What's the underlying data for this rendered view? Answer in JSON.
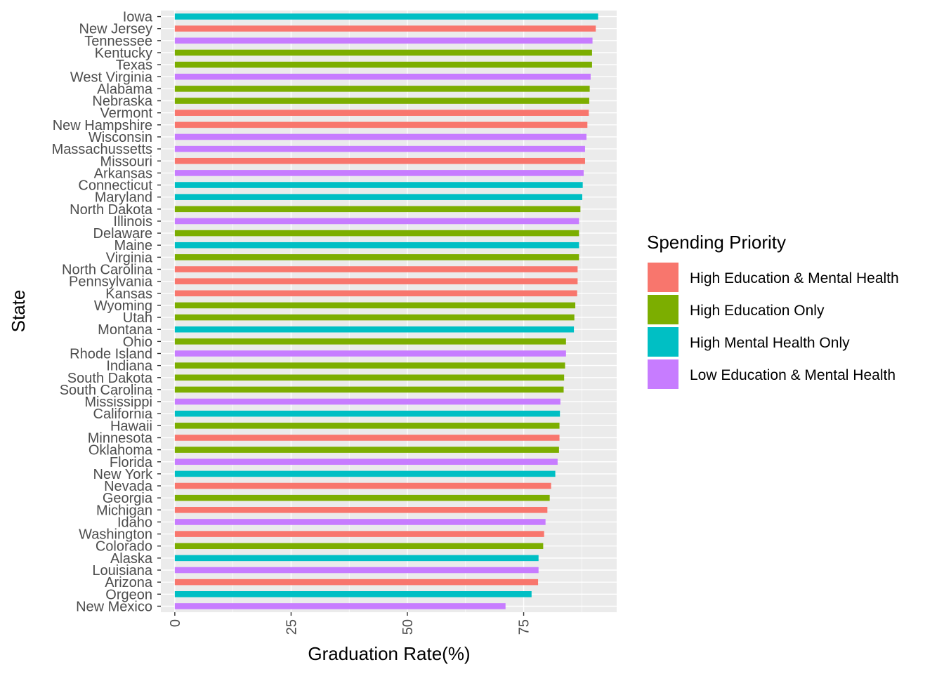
{
  "chart_data": {
    "type": "bar",
    "orientation": "horizontal",
    "xlabel": "Graduation Rate(%)",
    "ylabel": "State",
    "xlim": [
      -3,
      95
    ],
    "x_ticks": [
      0,
      25,
      50,
      75
    ],
    "x_tick_labels": [
      "0",
      "25",
      "50",
      "75"
    ],
    "grid": true,
    "legend": {
      "title": "Spending Priority",
      "position": "right",
      "entries": [
        {
          "label": "High Education & Mental Health",
          "color": "#F8766D"
        },
        {
          "label": "High Education Only",
          "color": "#7CAE00"
        },
        {
          "label": "High Mental Health Only",
          "color": "#00BFC4"
        },
        {
          "label": "Low Education & Mental Health",
          "color": "#C77CFF"
        }
      ]
    },
    "categories": [
      "New Mexico",
      "Orgeon",
      "Arizona",
      "Louisiana",
      "Alaska",
      "Colorado",
      "Washington",
      "Idaho",
      "Michigan",
      "Georgia",
      "Nevada",
      "New York",
      "Florida",
      "Oklahoma",
      "Minnesota",
      "Hawaii",
      "California",
      "Mississippi",
      "South Carolina",
      "South Dakota",
      "Indiana",
      "Rhode Island",
      "Ohio",
      "Montana",
      "Utah",
      "Wyoming",
      "Kansas",
      "Pennsylvania",
      "North Carolina",
      "Virginia",
      "Maine",
      "Delaware",
      "Illinois",
      "North Dakota",
      "Maryland",
      "Connecticut",
      "Arkansas",
      "Missouri",
      "Massachussetts",
      "Wisconsin",
      "New Hampshire",
      "Vermont",
      "Nebraska",
      "Alabama",
      "West Virginia",
      "Texas",
      "Kentucky",
      "Tennessee",
      "New Jersey",
      "Iowa"
    ],
    "values": [
      71.1,
      76.7,
      78.1,
      78.2,
      78.2,
      79.2,
      79.4,
      79.7,
      80.1,
      80.6,
      80.9,
      81.8,
      82.3,
      82.6,
      82.7,
      82.7,
      82.8,
      82.9,
      83.6,
      83.7,
      83.9,
      84.1,
      84.1,
      85.8,
      85.9,
      86.1,
      86.5,
      86.6,
      86.6,
      86.9,
      86.9,
      86.9,
      86.9,
      87.2,
      87.6,
      87.7,
      87.9,
      88.2,
      88.2,
      88.5,
      88.7,
      89.0,
      89.1,
      89.2,
      89.4,
      89.7,
      89.7,
      89.8,
      90.5,
      91.0
    ],
    "groups": [
      "Low Education & Mental Health",
      "High Mental Health Only",
      "High Education & Mental Health",
      "Low Education & Mental Health",
      "High Mental Health Only",
      "High Education Only",
      "High Education & Mental Health",
      "Low Education & Mental Health",
      "High Education & Mental Health",
      "High Education Only",
      "High Education & Mental Health",
      "High Mental Health Only",
      "Low Education & Mental Health",
      "High Education Only",
      "High Education & Mental Health",
      "High Education Only",
      "High Mental Health Only",
      "Low Education & Mental Health",
      "High Education Only",
      "High Education Only",
      "High Education Only",
      "Low Education & Mental Health",
      "High Education Only",
      "High Mental Health Only",
      "High Education Only",
      "High Education Only",
      "High Education & Mental Health",
      "High Education & Mental Health",
      "High Education & Mental Health",
      "High Education Only",
      "High Mental Health Only",
      "High Education Only",
      "Low Education & Mental Health",
      "High Education Only",
      "High Mental Health Only",
      "High Mental Health Only",
      "Low Education & Mental Health",
      "High Education & Mental Health",
      "Low Education & Mental Health",
      "Low Education & Mental Health",
      "High Education & Mental Health",
      "High Education & Mental Health",
      "High Education Only",
      "High Education Only",
      "Low Education & Mental Health",
      "High Education Only",
      "High Education Only",
      "Low Education & Mental Health",
      "High Education & Mental Health",
      "High Mental Health Only"
    ]
  }
}
